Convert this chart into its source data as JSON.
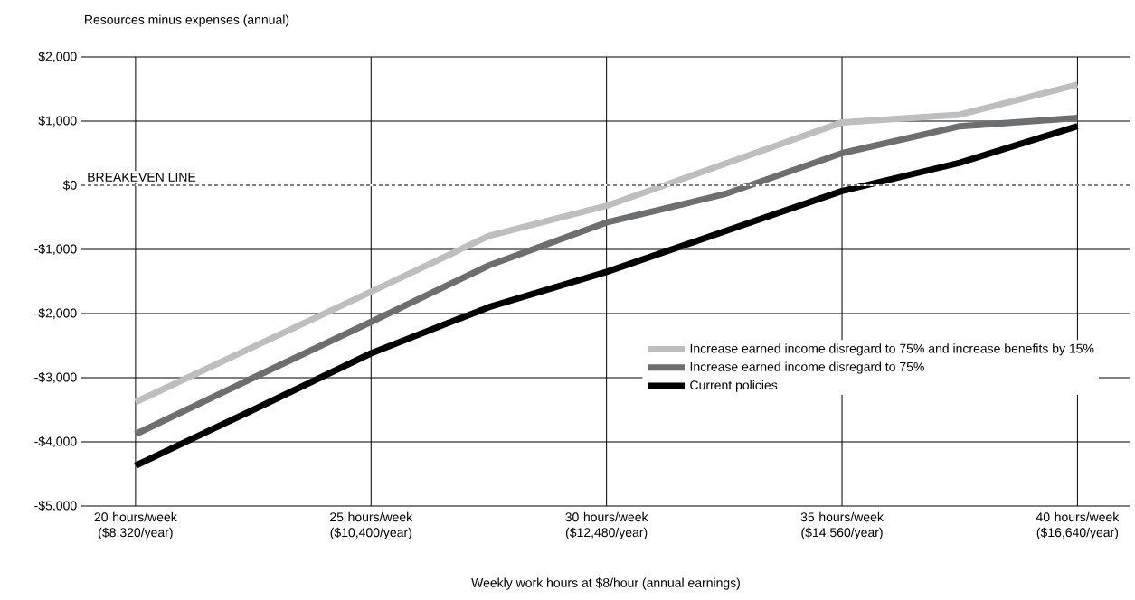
{
  "chart_data": {
    "type": "line",
    "ylabel": "Resources minus expenses (annual)",
    "xlabel": "Weekly work hours at $8/hour (annual earnings)",
    "categories": [
      "20 hours/week ($8,320/year)",
      null,
      "25 hours/week ($10,400/year)",
      null,
      "30 hours/week ($12,480/year)",
      null,
      "35 hours/week ($14,560/year)",
      null,
      "40 hours/week ($16,640/year)"
    ],
    "series": [
      {
        "name": "Increase earned income disregard to 75% and increase benefits by 15%",
        "color": "#bdbebf",
        "values": [
          -3380,
          -2520,
          -1660,
          -790,
          -320,
          330,
          980,
          1100,
          1570
        ]
      },
      {
        "name": "Increase earned income disregard to 75%",
        "color": "#6d6e70",
        "values": [
          -3880,
          -3000,
          -2130,
          -1250,
          -580,
          -140,
          500,
          920,
          1050
        ]
      },
      {
        "name": "Current policies",
        "color": "#000000",
        "values": [
          -4370,
          -3500,
          -2620,
          -1900,
          -1350,
          -720,
          -90,
          350,
          920
        ]
      }
    ],
    "ylim": [
      -5000,
      2000
    ],
    "yticks": [
      {
        "value": -5000,
        "label": "-$5,000"
      },
      {
        "value": -4000,
        "label": "-$4,000"
      },
      {
        "value": -3000,
        "label": "-$3,000"
      },
      {
        "value": -2000,
        "label": "-$2,000"
      },
      {
        "value": -1000,
        "label": "-$1,000"
      },
      {
        "value": 0,
        "label": "$0"
      },
      {
        "value": 1000,
        "label": "$1,000"
      },
      {
        "value": 2000,
        "label": "$2,000"
      }
    ],
    "ref_lines": [
      {
        "axis": "y",
        "value": 0,
        "label": "BREAKEVEN LINE",
        "line_style": "dashed",
        "color": "#000000"
      }
    ],
    "grid": true,
    "legend": "bottom right",
    "line_style": "solid"
  }
}
